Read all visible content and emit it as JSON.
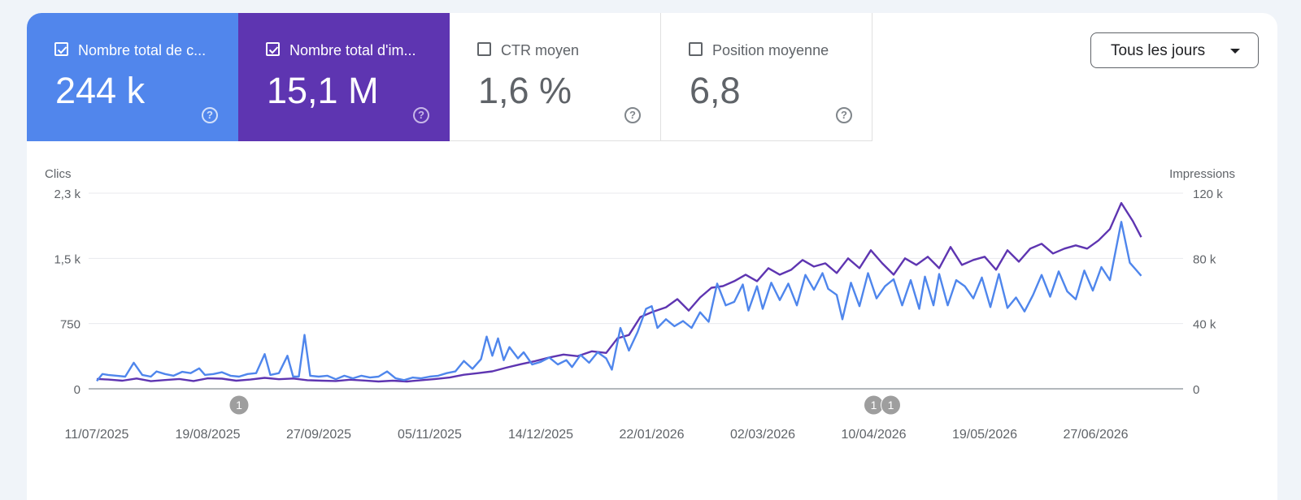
{
  "metrics": [
    {
      "label": "Nombre total de c...",
      "value": "244 k",
      "checked": true,
      "color": "#5186ec"
    },
    {
      "label": "Nombre total d'im...",
      "value": "15,1 M",
      "checked": true,
      "color": "#5e35b1"
    },
    {
      "label": "CTR moyen",
      "value": "1,6 %",
      "checked": false
    },
    {
      "label": "Position moyenne",
      "value": "6,8",
      "checked": false
    }
  ],
  "period_dropdown": {
    "label": "Tous les jours"
  },
  "chart_data": {
    "type": "line",
    "y_left_label": "Clics",
    "y_right_label": "Impressions",
    "y_left_ticks": [
      {
        "value": 0,
        "label": "0"
      },
      {
        "value": 750,
        "label": "750"
      },
      {
        "value": 1500,
        "label": "1,5 k"
      },
      {
        "value": 2250,
        "label": "2,3 k"
      }
    ],
    "y_right_ticks": [
      {
        "value": 0,
        "label": "0"
      },
      {
        "value": 40000,
        "label": "40 k"
      },
      {
        "value": 80000,
        "label": "80 k"
      },
      {
        "value": 120000,
        "label": "120 k"
      }
    ],
    "y_left_range": [
      0,
      2250
    ],
    "y_right_range": [
      0,
      120000
    ],
    "x_ticks": [
      "11/07/2025",
      "19/08/2025",
      "27/09/2025",
      "05/11/2025",
      "14/12/2025",
      "22/01/2026",
      "02/03/2026",
      "10/04/2026",
      "19/05/2026",
      "27/06/2026"
    ],
    "x_start": "11/07/2025",
    "x_end": "22/07/2026",
    "annotations": [
      {
        "date": "30/08/2025",
        "label": "1"
      },
      {
        "date": "10/04/2026",
        "label": "1"
      },
      {
        "date": "16/04/2026",
        "label": "1"
      }
    ],
    "series": [
      {
        "name": "Clics",
        "axis": "left",
        "color": "#4f86ec",
        "points": [
          [
            "11/07/2025",
            90
          ],
          [
            "13/07/2025",
            170
          ],
          [
            "15/07/2025",
            160
          ],
          [
            "18/07/2025",
            150
          ],
          [
            "21/07/2025",
            140
          ],
          [
            "24/07/2025",
            300
          ],
          [
            "27/07/2025",
            160
          ],
          [
            "30/07/2025",
            140
          ],
          [
            "01/08/2025",
            200
          ],
          [
            "04/08/2025",
            170
          ],
          [
            "07/08/2025",
            150
          ],
          [
            "10/08/2025",
            195
          ],
          [
            "13/08/2025",
            180
          ],
          [
            "16/08/2025",
            235
          ],
          [
            "18/08/2025",
            160
          ],
          [
            "21/08/2025",
            170
          ],
          [
            "24/08/2025",
            190
          ],
          [
            "27/08/2025",
            150
          ],
          [
            "30/08/2025",
            140
          ],
          [
            "02/09/2025",
            170
          ],
          [
            "05/09/2025",
            180
          ],
          [
            "08/09/2025",
            400
          ],
          [
            "10/09/2025",
            160
          ],
          [
            "13/09/2025",
            180
          ],
          [
            "16/09/2025",
            380
          ],
          [
            "18/09/2025",
            140
          ],
          [
            "20/09/2025",
            140
          ],
          [
            "22/09/2025",
            620
          ],
          [
            "24/09/2025",
            150
          ],
          [
            "27/09/2025",
            140
          ],
          [
            "30/09/2025",
            150
          ],
          [
            "03/10/2025",
            110
          ],
          [
            "06/10/2025",
            150
          ],
          [
            "09/10/2025",
            120
          ],
          [
            "12/10/2025",
            150
          ],
          [
            "15/10/2025",
            130
          ],
          [
            "18/10/2025",
            140
          ],
          [
            "21/10/2025",
            200
          ],
          [
            "24/10/2025",
            120
          ],
          [
            "27/10/2025",
            100
          ],
          [
            "30/10/2025",
            130
          ],
          [
            "02/11/2025",
            120
          ],
          [
            "05/11/2025",
            140
          ],
          [
            "08/11/2025",
            150
          ],
          [
            "11/11/2025",
            180
          ],
          [
            "14/11/2025",
            200
          ],
          [
            "17/11/2025",
            320
          ],
          [
            "20/11/2025",
            230
          ],
          [
            "23/11/2025",
            340
          ],
          [
            "25/11/2025",
            600
          ],
          [
            "27/11/2025",
            380
          ],
          [
            "29/11/2025",
            580
          ],
          [
            "01/12/2025",
            330
          ],
          [
            "03/12/2025",
            480
          ],
          [
            "06/12/2025",
            350
          ],
          [
            "08/12/2025",
            420
          ],
          [
            "11/12/2025",
            280
          ],
          [
            "14/12/2025",
            310
          ],
          [
            "17/12/2025",
            360
          ],
          [
            "20/12/2025",
            280
          ],
          [
            "23/12/2025",
            330
          ],
          [
            "25/12/2025",
            250
          ],
          [
            "28/12/2025",
            390
          ],
          [
            "31/12/2025",
            300
          ],
          [
            "03/01/2026",
            420
          ],
          [
            "06/01/2026",
            350
          ],
          [
            "08/01/2026",
            220
          ],
          [
            "11/01/2026",
            700
          ],
          [
            "14/01/2026",
            440
          ],
          [
            "17/01/2026",
            650
          ],
          [
            "20/01/2026",
            920
          ],
          [
            "22/01/2026",
            950
          ],
          [
            "24/01/2026",
            700
          ],
          [
            "27/01/2026",
            800
          ],
          [
            "30/01/2026",
            720
          ],
          [
            "02/02/2026",
            780
          ],
          [
            "05/02/2026",
            700
          ],
          [
            "08/02/2026",
            880
          ],
          [
            "11/02/2026",
            770
          ],
          [
            "14/02/2026",
            1210
          ],
          [
            "17/02/2026",
            960
          ],
          [
            "20/02/2026",
            1000
          ],
          [
            "23/02/2026",
            1200
          ],
          [
            "25/02/2026",
            900
          ],
          [
            "28/02/2026",
            1180
          ],
          [
            "02/03/2026",
            920
          ],
          [
            "05/03/2026",
            1220
          ],
          [
            "08/03/2026",
            1020
          ],
          [
            "11/03/2026",
            1210
          ],
          [
            "14/03/2026",
            960
          ],
          [
            "17/03/2026",
            1310
          ],
          [
            "20/03/2026",
            1140
          ],
          [
            "23/03/2026",
            1330
          ],
          [
            "25/03/2026",
            1150
          ],
          [
            "28/03/2026",
            1080
          ],
          [
            "30/03/2026",
            800
          ],
          [
            "02/04/2026",
            1220
          ],
          [
            "05/04/2026",
            950
          ],
          [
            "08/04/2026",
            1330
          ],
          [
            "11/04/2026",
            1040
          ],
          [
            "14/04/2026",
            1180
          ],
          [
            "17/04/2026",
            1260
          ],
          [
            "20/04/2026",
            960
          ],
          [
            "23/04/2026",
            1250
          ],
          [
            "26/04/2026",
            920
          ],
          [
            "28/04/2026",
            1290
          ],
          [
            "01/05/2026",
            960
          ],
          [
            "03/05/2026",
            1320
          ],
          [
            "06/05/2026",
            960
          ],
          [
            "09/05/2026",
            1250
          ],
          [
            "12/05/2026",
            1180
          ],
          [
            "15/05/2026",
            1040
          ],
          [
            "18/05/2026",
            1280
          ],
          [
            "21/05/2026",
            940
          ],
          [
            "24/05/2026",
            1320
          ],
          [
            "27/05/2026",
            930
          ],
          [
            "30/05/2026",
            1050
          ],
          [
            "02/06/2026",
            890
          ],
          [
            "05/06/2026",
            1080
          ],
          [
            "08/06/2026",
            1310
          ],
          [
            "11/06/2026",
            1060
          ],
          [
            "14/06/2026",
            1350
          ],
          [
            "17/06/2026",
            1120
          ],
          [
            "20/06/2026",
            1030
          ],
          [
            "23/06/2026",
            1360
          ],
          [
            "26/06/2026",
            1130
          ],
          [
            "29/06/2026",
            1400
          ],
          [
            "02/07/2026",
            1250
          ],
          [
            "06/07/2026",
            1920
          ],
          [
            "09/07/2026",
            1450
          ],
          [
            "13/07/2026",
            1300
          ]
        ]
      },
      {
        "name": "Impressions",
        "axis": "right",
        "color": "#5e35b1",
        "points": [
          [
            "11/07/2025",
            6000
          ],
          [
            "15/07/2025",
            5700
          ],
          [
            "20/07/2025",
            5000
          ],
          [
            "25/07/2025",
            6300
          ],
          [
            "30/07/2025",
            4700
          ],
          [
            "04/08/2025",
            5400
          ],
          [
            "09/08/2025",
            6000
          ],
          [
            "14/08/2025",
            4800
          ],
          [
            "19/08/2025",
            6400
          ],
          [
            "24/08/2025",
            6200
          ],
          [
            "29/08/2025",
            5000
          ],
          [
            "03/09/2025",
            5700
          ],
          [
            "08/09/2025",
            6700
          ],
          [
            "13/09/2025",
            5900
          ],
          [
            "18/09/2025",
            6300
          ],
          [
            "23/09/2025",
            5300
          ],
          [
            "28/09/2025",
            5000
          ],
          [
            "03/10/2025",
            4800
          ],
          [
            "08/10/2025",
            5600
          ],
          [
            "13/10/2025",
            5100
          ],
          [
            "18/10/2025",
            4500
          ],
          [
            "23/10/2025",
            5000
          ],
          [
            "28/10/2025",
            4500
          ],
          [
            "02/11/2025",
            5300
          ],
          [
            "07/11/2025",
            6000
          ],
          [
            "12/11/2025",
            6900
          ],
          [
            "17/11/2025",
            8600
          ],
          [
            "22/11/2025",
            9600
          ],
          [
            "27/11/2025",
            10700
          ],
          [
            "02/12/2025",
            13000
          ],
          [
            "07/12/2025",
            15100
          ],
          [
            "12/12/2025",
            17000
          ],
          [
            "17/12/2025",
            19200
          ],
          [
            "22/12/2025",
            21000
          ],
          [
            "27/12/2025",
            20000
          ],
          [
            "01/01/2026",
            23000
          ],
          [
            "06/01/2026",
            22000
          ],
          [
            "10/01/2026",
            31000
          ],
          [
            "14/01/2026",
            33000
          ],
          [
            "18/01/2026",
            44000
          ],
          [
            "22/01/2026",
            47000
          ],
          [
            "27/01/2026",
            50000
          ],
          [
            "31/01/2026",
            55000
          ],
          [
            "04/02/2026",
            48000
          ],
          [
            "08/02/2026",
            56000
          ],
          [
            "12/02/2026",
            62000
          ],
          [
            "16/02/2026",
            63000
          ],
          [
            "20/02/2026",
            66000
          ],
          [
            "24/02/2026",
            70000
          ],
          [
            "28/02/2026",
            66000
          ],
          [
            "04/03/2026",
            74000
          ],
          [
            "08/03/2026",
            70000
          ],
          [
            "12/03/2026",
            73000
          ],
          [
            "16/03/2026",
            79000
          ],
          [
            "20/03/2026",
            75000
          ],
          [
            "24/03/2026",
            77000
          ],
          [
            "28/03/2026",
            71000
          ],
          [
            "01/04/2026",
            80000
          ],
          [
            "05/04/2026",
            74000
          ],
          [
            "09/04/2026",
            85000
          ],
          [
            "13/04/2026",
            77000
          ],
          [
            "17/04/2026",
            70000
          ],
          [
            "21/04/2026",
            80000
          ],
          [
            "25/04/2026",
            76000
          ],
          [
            "29/04/2026",
            81000
          ],
          [
            "03/05/2026",
            74000
          ],
          [
            "07/05/2026",
            87000
          ],
          [
            "11/05/2026",
            76000
          ],
          [
            "15/05/2026",
            79000
          ],
          [
            "19/05/2026",
            81000
          ],
          [
            "23/05/2026",
            73000
          ],
          [
            "27/05/2026",
            85000
          ],
          [
            "31/05/2026",
            78000
          ],
          [
            "04/06/2026",
            86000
          ],
          [
            "08/06/2026",
            89000
          ],
          [
            "12/06/2026",
            83000
          ],
          [
            "16/06/2026",
            86000
          ],
          [
            "20/06/2026",
            88000
          ],
          [
            "24/06/2026",
            86000
          ],
          [
            "28/06/2026",
            91000
          ],
          [
            "02/07/2026",
            98000
          ],
          [
            "06/07/2026",
            114000
          ],
          [
            "10/07/2026",
            103000
          ],
          [
            "13/07/2026",
            93000
          ]
        ]
      }
    ]
  }
}
